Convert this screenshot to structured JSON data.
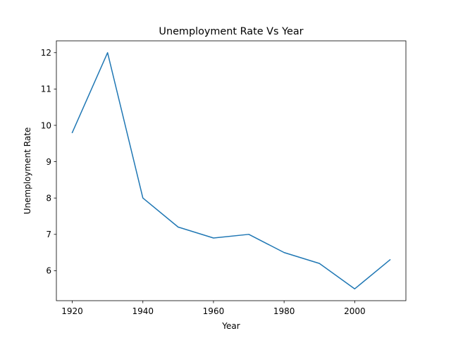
{
  "chart_data": {
    "type": "line",
    "title": "Unemployment Rate Vs Year",
    "xlabel": "Year",
    "ylabel": "Unemployment Rate",
    "x": [
      1920,
      1930,
      1940,
      1950,
      1960,
      1970,
      1980,
      1990,
      2000,
      2010
    ],
    "series": [
      {
        "values": [
          9.8,
          12.0,
          8.0,
          7.2,
          6.9,
          7.0,
          6.5,
          6.2,
          5.5,
          6.3
        ],
        "color": "#1f77b4"
      }
    ],
    "xlim": [
      1915.5,
      2014.5
    ],
    "ylim": [
      5.175,
      12.325
    ],
    "xticks": [
      1920,
      1940,
      1960,
      1980,
      2000
    ],
    "yticks": [
      6,
      7,
      8,
      9,
      10,
      11,
      12
    ],
    "grid": false,
    "legend": "none"
  }
}
